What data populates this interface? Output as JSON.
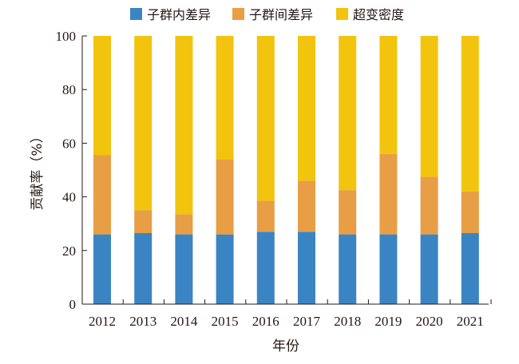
{
  "chart_data": {
    "type": "bar",
    "stacked": true,
    "categories": [
      "2012",
      "2013",
      "2014",
      "2015",
      "2016",
      "2017",
      "2018",
      "2019",
      "2020",
      "2021"
    ],
    "series": [
      {
        "name": "子群内差异",
        "color": "#3b84c4",
        "values": [
          26,
          26.5,
          26,
          26,
          27,
          27,
          26,
          26,
          26,
          26.5
        ]
      },
      {
        "name": "子群间差异",
        "color": "#e89e45",
        "values": [
          29.5,
          8.5,
          7.5,
          28,
          11.5,
          19,
          16.5,
          30,
          21.5,
          15.5
        ]
      },
      {
        "name": "超变密度",
        "color": "#f2c40e",
        "values": [
          44.5,
          65,
          66.5,
          46,
          61.5,
          54,
          57.5,
          44,
          52.5,
          58
        ]
      }
    ],
    "yticks": [
      "0",
      "20",
      "40",
      "60",
      "80",
      "100"
    ],
    "ylim": [
      0,
      100
    ],
    "xlabel": "年份",
    "ylabel": "贡献率（%）",
    "legend_position": "top",
    "grid": false
  }
}
